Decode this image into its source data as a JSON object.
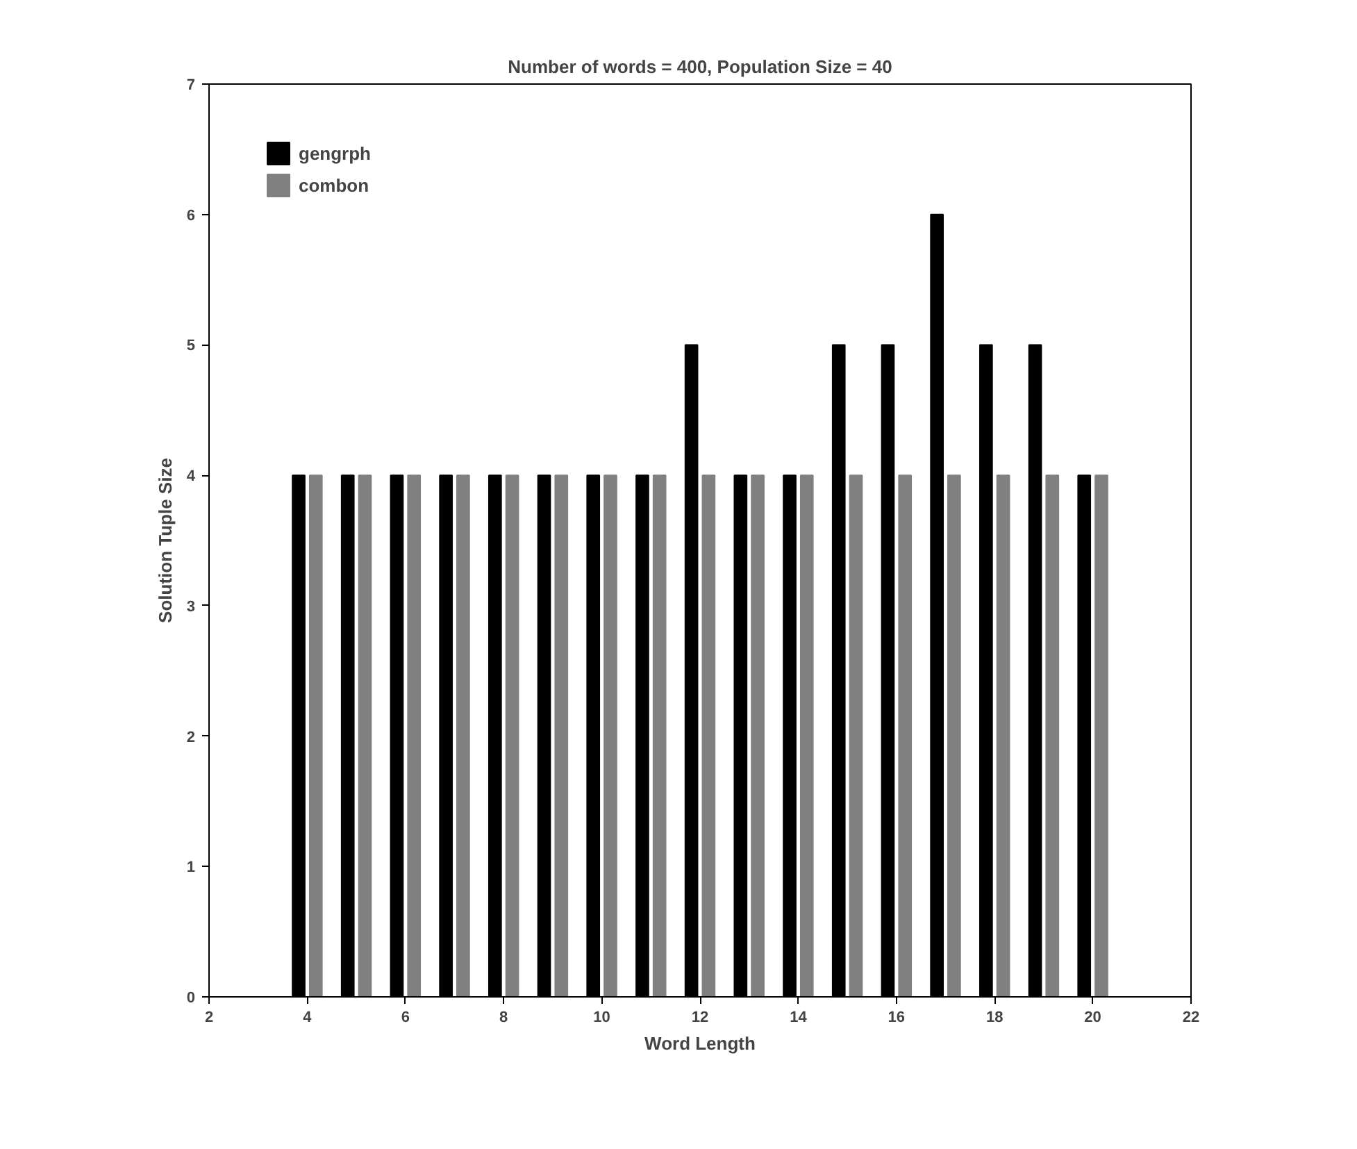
{
  "chart_data": {
    "type": "bar",
    "title": "Number of words = 400, Population Size = 40",
    "xlabel": "Word Length",
    "ylabel": "Solution Tuple Size",
    "x": [
      4,
      5,
      6,
      7,
      8,
      9,
      10,
      11,
      12,
      13,
      14,
      15,
      16,
      17,
      18,
      19,
      20
    ],
    "series": [
      {
        "name": "gengrph",
        "color": "#000000",
        "values": [
          4,
          4,
          4,
          4,
          4,
          4,
          4,
          4,
          5,
          4,
          4,
          5,
          5,
          6,
          5,
          5,
          4
        ]
      },
      {
        "name": "combon",
        "color": "#808080",
        "values": [
          4,
          4,
          4,
          4,
          4,
          4,
          4,
          4,
          4,
          4,
          4,
          4,
          4,
          4,
          4,
          4,
          4
        ]
      }
    ],
    "xlim": [
      2,
      22
    ],
    "xticks": [
      2,
      4,
      6,
      8,
      10,
      12,
      14,
      16,
      18,
      20,
      22
    ],
    "ylim": [
      0,
      7
    ],
    "yticks": [
      0,
      1,
      2,
      3,
      4,
      5,
      6,
      7
    ],
    "grid": false,
    "legend": "top left"
  }
}
